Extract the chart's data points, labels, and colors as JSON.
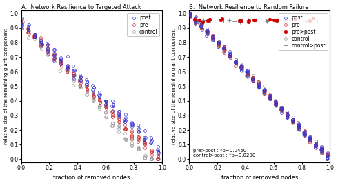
{
  "title_A": "A.  Network Resilience to Targeted Attack",
  "title_B": "B.  Network Resilience to Random Failure",
  "xlabel": "fraction of removed nodes",
  "ylabel": "relative size of the remaining giant component",
  "xlim": [
    0,
    1
  ],
  "ylim": [
    -0.02,
    1.02
  ],
  "annotation_B": "pre>post : *p=0.0450\ncontrol>post : *p=0.0200",
  "colors": {
    "post": "#3333cc",
    "pre": "#cc3333",
    "control": "#999999",
    "pre_gt_post": "#cc0000",
    "control_gt_post": "#888888"
  },
  "xticks": [
    0,
    0.2,
    0.4,
    0.6,
    0.8,
    1.0
  ],
  "yticks": [
    0,
    0.1,
    0.2,
    0.3,
    0.4,
    0.5,
    0.6,
    0.7,
    0.8,
    0.9,
    1.0
  ]
}
